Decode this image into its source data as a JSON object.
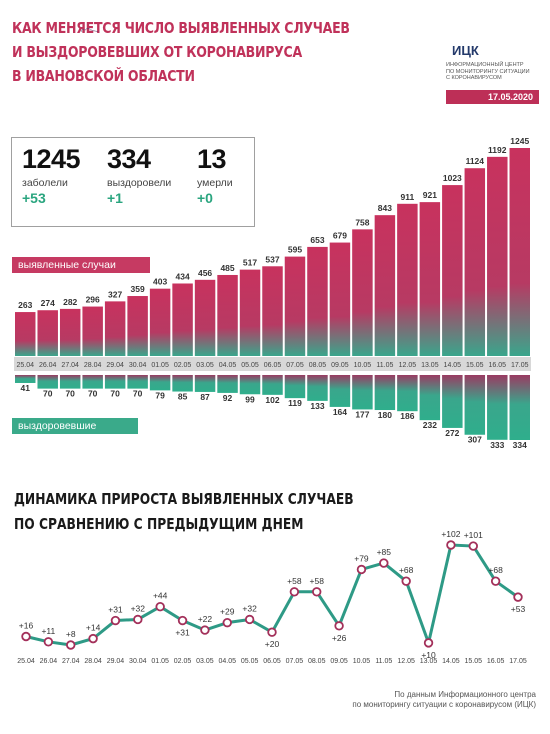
{
  "header": {
    "title_lines": [
      "КАК МЕНЯЕТСЯ ЧИСЛО ВЫЯВЛЕННЫХ СЛУЧАЕВ",
      "И ВЫЗДОРОВЕВШИХ ОТ КОРОНАВИРУСА",
      "В ИВАНОВСКОЙ ОБЛАСТИ"
    ],
    "logo_text": "ИЦК",
    "org_lines": [
      "ИНФОРМАЦИОННЫЙ ЦЕНТР",
      "ПО МОНИТОРИНГУ СИТУАЦИИ",
      "С КОРОНАВИРУСОМ"
    ],
    "date": "17.05.2020"
  },
  "stats": [
    {
      "number": "1245",
      "label": "заболели",
      "delta": "+53"
    },
    {
      "number": "334",
      "label": "выздоровели",
      "delta": "+1"
    },
    {
      "number": "13",
      "label": "умерли",
      "delta": "+0"
    }
  ],
  "labels": {
    "cases_tag": "выявленные случаи",
    "recovered_tag": "выздоровевшие"
  },
  "subtitle_lines": [
    "ДИНАМИКА ПРИРОСТА ВЫЯВЛЕННЫХ СЛУЧАЕВ",
    "ПО СРАВНЕНИЮ С ПРЕДЫДУЩИМ ДНЕМ"
  ],
  "footer_lines": [
    "По данным Информационного центра",
    "по мониторингу ситуации с коронавирусом (ИЦК)"
  ],
  "colors": {
    "cases": "#c63a62",
    "recovered": "#3aaa8a",
    "date_bg": "#d8d8d8",
    "line": "#2e9a86",
    "marker": "#a3305a"
  },
  "chart_data": [
    {
      "type": "bar",
      "categories": [
        "25.04",
        "26.04",
        "27.04",
        "28.04",
        "29.04",
        "30.04",
        "01.05",
        "02.05",
        "03.05",
        "04.05",
        "05.05",
        "06.05",
        "07.05",
        "08.05",
        "09.05",
        "10.05",
        "11.05",
        "12.05",
        "13.05",
        "14.05",
        "15.05",
        "16.05",
        "17.05"
      ],
      "series": [
        {
          "name": "выявленные случаи",
          "values": [
            263,
            274,
            282,
            296,
            327,
            359,
            403,
            434,
            456,
            485,
            517,
            537,
            595,
            653,
            679,
            758,
            843,
            911,
            921,
            1023,
            1124,
            1192,
            1245
          ]
        },
        {
          "name": "выздоровевшие",
          "values": [
            41,
            70,
            70,
            70,
            70,
            70,
            79,
            85,
            87,
            92,
            99,
            102,
            119,
            133,
            164,
            177,
            180,
            186,
            232,
            272,
            307,
            333,
            334
          ]
        }
      ]
    },
    {
      "type": "line",
      "title": "ДИНАМИКА ПРИРОСТА ВЫЯВЛЕННЫХ СЛУЧАЕВ ПО СРАВНЕНИЮ С ПРЕДЫДУЩИМ ДНЕМ",
      "x": [
        "25.04",
        "26.04",
        "27.04",
        "28.04",
        "29.04",
        "30.04",
        "01.05",
        "02.05",
        "03.05",
        "04.05",
        "05.05",
        "06.05",
        "07.05",
        "08.05",
        "09.05",
        "10.05",
        "11.05",
        "12.05",
        "13.05",
        "14.05",
        "15.05",
        "16.05",
        "17.05"
      ],
      "values": [
        16,
        11,
        8,
        14,
        31,
        32,
        44,
        31,
        22,
        29,
        32,
        20,
        58,
        58,
        26,
        79,
        85,
        68,
        10,
        102,
        101,
        68,
        53
      ],
      "labels": [
        "+16",
        "+11",
        "+8",
        "+14",
        "+31",
        "+32",
        "+44",
        "+31",
        "+22",
        "+29",
        "+32",
        "+20",
        "+58",
        "+58",
        "+26",
        "+79",
        "+85",
        "+68",
        "+10",
        "+102",
        "+101",
        "+68",
        "+53"
      ]
    }
  ]
}
